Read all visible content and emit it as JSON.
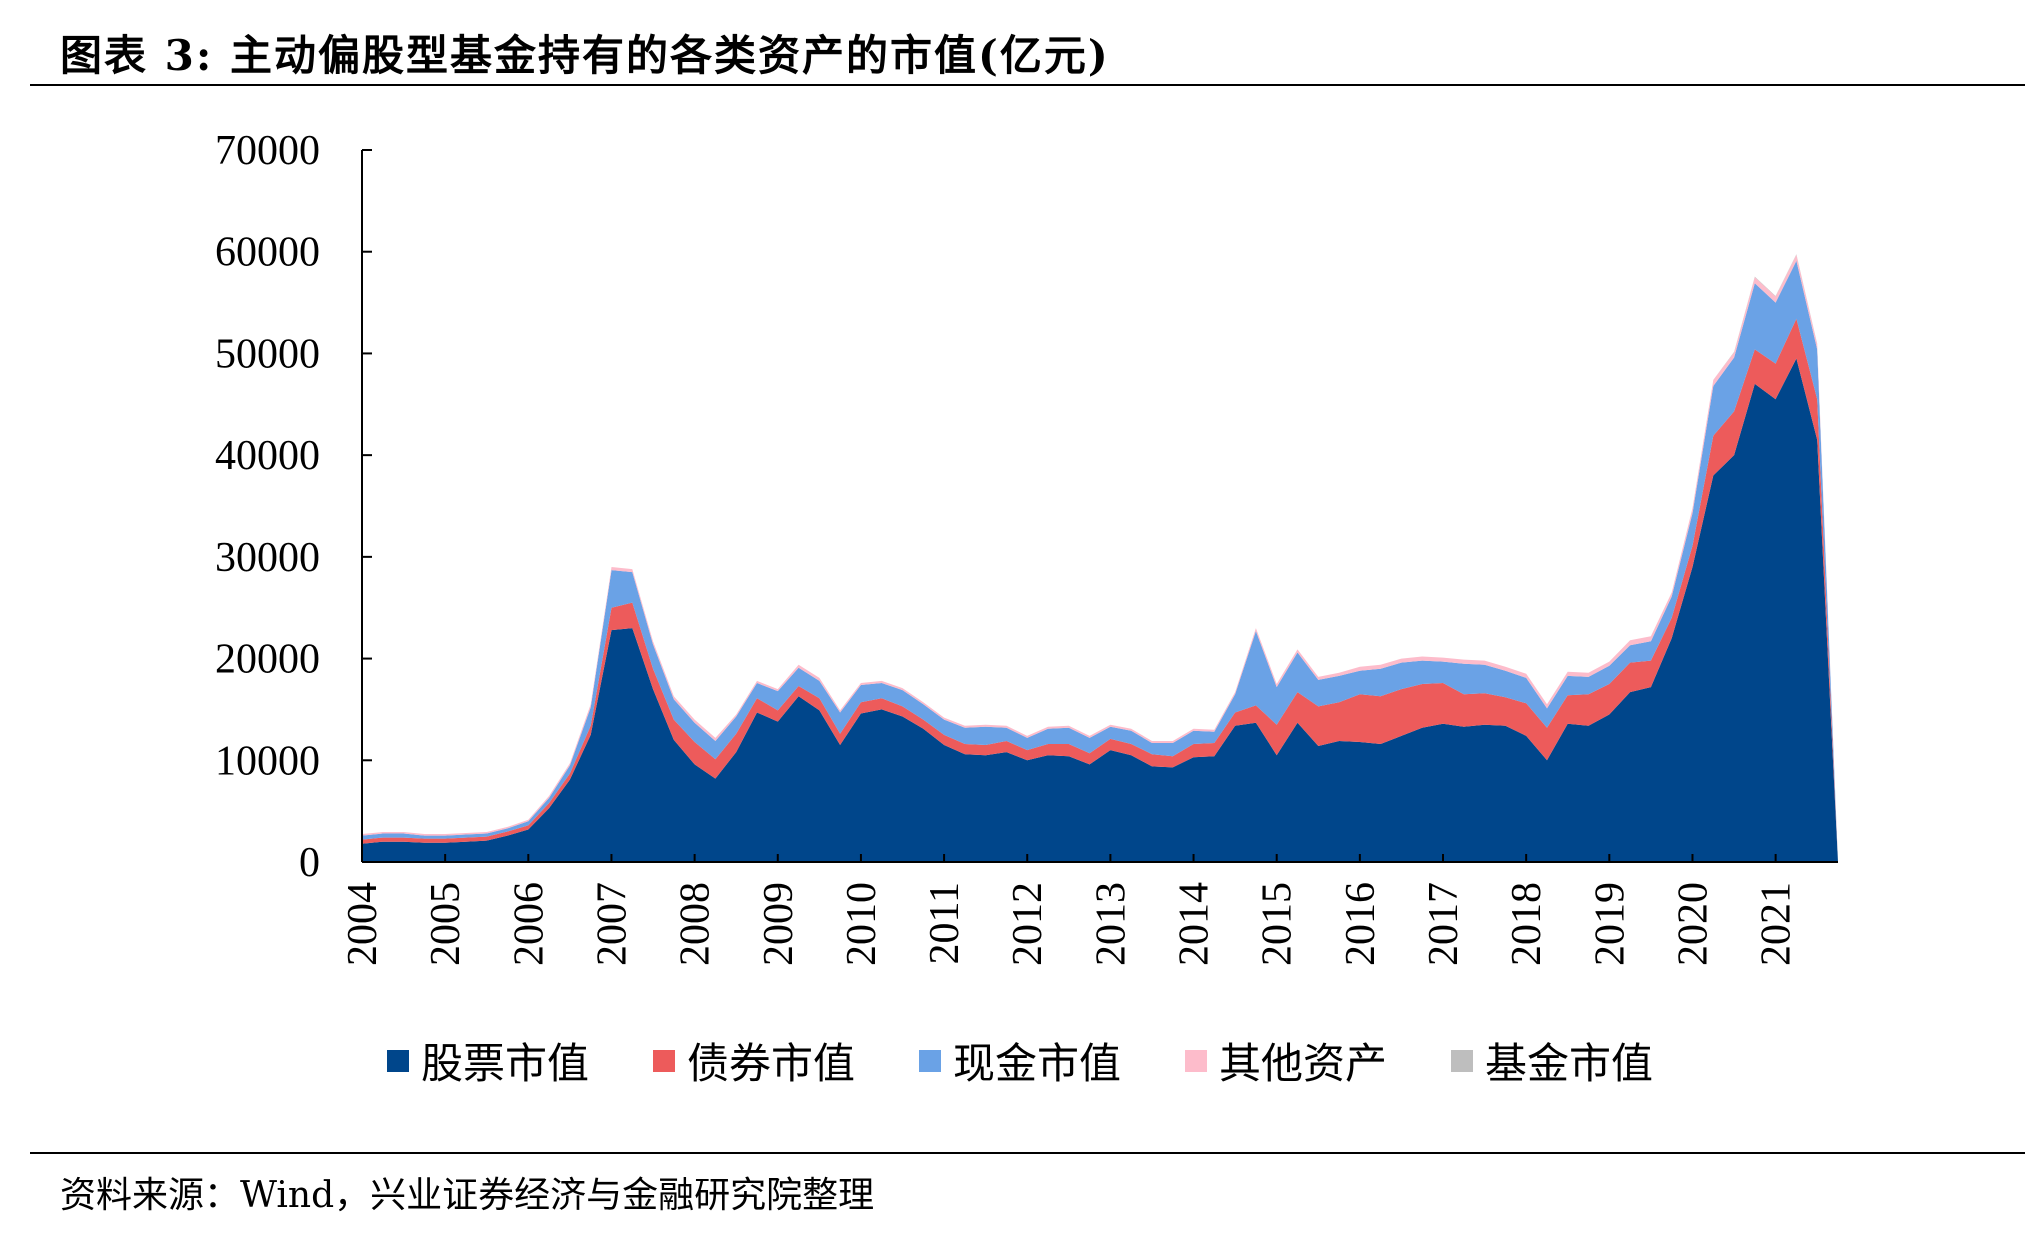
{
  "title": "图表 3:  主动偏股型基金持有的各类资产的市值(亿元)",
  "source": "资料来源：Wind，兴业证券经济与金融研究院整理",
  "chart_data": {
    "type": "area",
    "stacked": true,
    "ylim": [
      0,
      70000
    ],
    "yticks": [
      "0",
      "10000",
      "20000",
      "30000",
      "40000",
      "50000",
      "60000",
      "70000"
    ],
    "xtick_labels": [
      "2004",
      "2005",
      "2006",
      "2007",
      "2008",
      "2009",
      "2010",
      "2011",
      "2012",
      "2013",
      "2014",
      "2015",
      "2016",
      "2017",
      "2018",
      "2019",
      "2020",
      "2021"
    ],
    "x": [
      2004.0,
      2004.25,
      2004.5,
      2004.75,
      2005.0,
      2005.25,
      2005.5,
      2005.75,
      2006.0,
      2006.25,
      2006.5,
      2006.75,
      2007.0,
      2007.25,
      2007.5,
      2007.75,
      2008.0,
      2008.25,
      2008.5,
      2008.75,
      2009.0,
      2009.25,
      2009.5,
      2009.75,
      2010.0,
      2010.25,
      2010.5,
      2010.75,
      2011.0,
      2011.25,
      2011.5,
      2011.75,
      2012.0,
      2012.25,
      2012.5,
      2012.75,
      2013.0,
      2013.25,
      2013.5,
      2013.75,
      2014.0,
      2014.25,
      2014.5,
      2014.75,
      2015.0,
      2015.25,
      2015.5,
      2015.75,
      2016.0,
      2016.25,
      2016.5,
      2016.75,
      2017.0,
      2017.25,
      2017.5,
      2017.75,
      2018.0,
      2018.25,
      2018.5,
      2018.75,
      2019.0,
      2019.25,
      2019.5,
      2019.75,
      2020.0,
      2020.25,
      2020.5,
      2020.75,
      2021.0,
      2021.25,
      2021.5,
      2021.75
    ],
    "series": [
      {
        "name": "股票市值",
        "color": "#00468b",
        "values": [
          1800,
          2000,
          2000,
          1900,
          1900,
          2000,
          2100,
          2600,
          3200,
          5300,
          8100,
          12500,
          22800,
          23000,
          17000,
          12000,
          9600,
          8200,
          10800,
          14700,
          13800,
          16300,
          14900,
          11500,
          14600,
          15000,
          14300,
          13100,
          11500,
          10600,
          10500,
          10800,
          10000,
          10500,
          10400,
          9600,
          11000,
          10500,
          9400,
          9300,
          10300,
          10400,
          13400,
          13700,
          10500,
          13700,
          11400,
          11900,
          11800,
          11600,
          12400,
          13200,
          13600,
          13300,
          13500,
          13400,
          12400,
          10000,
          13600,
          13400,
          14500,
          16700,
          17200,
          22000,
          29000,
          38000,
          40000,
          47000,
          45500,
          49500,
          41500,
          0
        ]
      },
      {
        "name": "债券市值",
        "color": "#ed5b5b",
        "values": [
          400,
          400,
          400,
          400,
          400,
          400,
          400,
          400,
          400,
          500,
          600,
          900,
          2200,
          2500,
          2000,
          2000,
          2200,
          1900,
          1800,
          1400,
          1100,
          1000,
          1200,
          1100,
          1100,
          1100,
          1000,
          900,
          1000,
          1000,
          1000,
          1100,
          1000,
          1100,
          1200,
          1100,
          1100,
          1100,
          1200,
          1100,
          1300,
          1300,
          1300,
          1700,
          3000,
          3000,
          3900,
          3800,
          4700,
          4700,
          4600,
          4300,
          4000,
          3200,
          3100,
          2800,
          3200,
          3200,
          2800,
          3100,
          3000,
          2900,
          2600,
          2000,
          2100,
          3900,
          4300,
          3400,
          3500,
          3900,
          4000,
          0
        ]
      },
      {
        "name": "现金市值",
        "color": "#6aa2e6",
        "values": [
          400,
          400,
          400,
          300,
          300,
          300,
          300,
          300,
          400,
          500,
          800,
          1800,
          3700,
          3000,
          2400,
          2000,
          1900,
          1800,
          1700,
          1500,
          1900,
          1800,
          1700,
          2100,
          1700,
          1500,
          1600,
          1500,
          1500,
          1600,
          1800,
          1300,
          1200,
          1500,
          1600,
          1500,
          1200,
          1300,
          1100,
          1300,
          1300,
          1100,
          1800,
          7300,
          3700,
          3900,
          2600,
          2600,
          2300,
          2700,
          2600,
          2300,
          2100,
          3000,
          2800,
          2600,
          2500,
          1900,
          1900,
          1700,
          1800,
          1700,
          1900,
          2100,
          3200,
          4900,
          5300,
          6500,
          6000,
          5700,
          4900,
          0
        ]
      },
      {
        "name": "其他资产",
        "color": "#fdbccb",
        "values": [
          150,
          150,
          150,
          150,
          150,
          150,
          150,
          150,
          150,
          200,
          200,
          300,
          300,
          300,
          300,
          300,
          300,
          300,
          200,
          200,
          200,
          300,
          300,
          200,
          200,
          200,
          200,
          200,
          200,
          200,
          200,
          200,
          200,
          200,
          200,
          200,
          200,
          200,
          200,
          200,
          200,
          200,
          200,
          300,
          300,
          300,
          300,
          300,
          400,
          400,
          400,
          400,
          400,
          400,
          400,
          400,
          400,
          400,
          400,
          400,
          400,
          500,
          500,
          400,
          500,
          600,
          500,
          600,
          600,
          600,
          500,
          0
        ]
      },
      {
        "name": "基金市值",
        "color": "#bebebe",
        "values": [
          0,
          0,
          0,
          0,
          0,
          0,
          0,
          0,
          0,
          0,
          0,
          0,
          0,
          0,
          0,
          0,
          0,
          0,
          0,
          0,
          0,
          0,
          0,
          0,
          0,
          0,
          0,
          0,
          0,
          0,
          0,
          0,
          0,
          0,
          0,
          0,
          0,
          0,
          0,
          0,
          0,
          0,
          0,
          0,
          0,
          0,
          0,
          0,
          0,
          0,
          0,
          0,
          0,
          0,
          0,
          0,
          0,
          0,
          0,
          0,
          0,
          0,
          0,
          0,
          0,
          0,
          50,
          50,
          50,
          50,
          50,
          0
        ]
      }
    ],
    "legend_position": "bottom",
    "grid": false
  }
}
